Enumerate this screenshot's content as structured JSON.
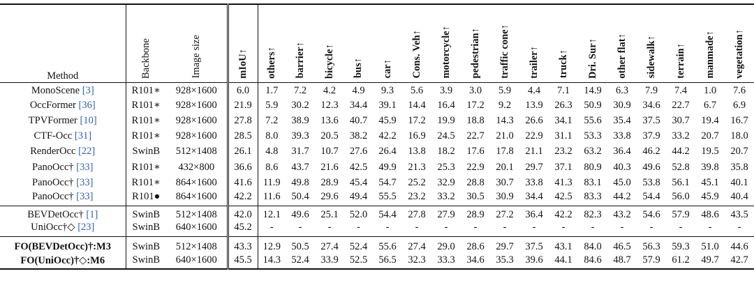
{
  "headers": {
    "method": "Method",
    "backbone": "Backbone",
    "image_size": "Image size",
    "metrics": [
      "mIoU↑",
      "others↑",
      "barrier↑",
      "bicycle↑",
      "bus↑",
      "car↑",
      "Cons. Veh↑",
      "motorcycle↑",
      "pedestrian↑",
      "traffic cone↑",
      "trailer↑",
      "truck↑",
      "Dri. Sur↑",
      "other flat↑",
      "sidewalk↑",
      "terrain↑",
      "manmade↑",
      "vegetation↑"
    ]
  },
  "groups": [
    {
      "rows": [
        {
          "name": "MonoScene",
          "cite": "[3]",
          "backbone": "R101∗",
          "size": "928×1600",
          "values": [
            "6.0",
            "1.7",
            "7.2",
            "4.2",
            "4.9",
            "9.3",
            "5.6",
            "3.9",
            "3.0",
            "5.9",
            "4.4",
            "7.1",
            "14.9",
            "6.3",
            "7.9",
            "7.4",
            "1.0",
            "7.6"
          ]
        },
        {
          "name": "OccFormer",
          "cite": "[36]",
          "backbone": "R101∗",
          "size": "928×1600",
          "values": [
            "21.9",
            "5.9",
            "30.2",
            "12.3",
            "34.4",
            "39.1",
            "14.4",
            "16.4",
            "17.2",
            "9.2",
            "13.9",
            "26.3",
            "50.9",
            "30.9",
            "34.6",
            "22.7",
            "6.7",
            "6.9"
          ]
        },
        {
          "name": "TPVFormer",
          "cite": "[10]",
          "backbone": "R101∗",
          "size": "928×1600",
          "values": [
            "27.8",
            "7.2",
            "38.9",
            "13.6",
            "40.7",
            "45.9",
            "17.2",
            "19.9",
            "18.8",
            "14.3",
            "26.6",
            "34.1",
            "55.6",
            "35.4",
            "37.5",
            "30.7",
            "19.4",
            "16.7"
          ]
        },
        {
          "name": "CTF-Occ",
          "cite": "[31]",
          "backbone": "R101∗",
          "size": "928×1600",
          "values": [
            "28.5",
            "8.0",
            "39.3",
            "20.5",
            "38.2",
            "42.2",
            "16.9",
            "24.5",
            "22.7",
            "21.0",
            "22.9",
            "31.1",
            "53.3",
            "33.8",
            "37.9",
            "33.2",
            "20.7",
            "18.0"
          ]
        },
        {
          "name": "RenderOcc",
          "cite": "[22]",
          "backbone": "SwinB",
          "size": "512×1408",
          "values": [
            "26.1",
            "4.8",
            "31.7",
            "10.7",
            "27.6",
            "26.4",
            "13.8",
            "18.2",
            "17.6",
            "17.8",
            "21.1",
            "23.2",
            "63.2",
            "36.4",
            "46.2",
            "44.2",
            "19.5",
            "20.7"
          ]
        },
        {
          "name": "PanoOcc†",
          "cite": "[33]",
          "backbone": "R101∗",
          "size": "432×800",
          "values": [
            "36.6",
            "8.6",
            "43.7",
            "21.6",
            "42.5",
            "49.9",
            "21.3",
            "25.3",
            "22.9",
            "20.1",
            "29.7",
            "37.1",
            "80.9",
            "40.3",
            "49.6",
            "52.8",
            "39.8",
            "35.8"
          ]
        },
        {
          "name": "PanoOcc†",
          "cite": "[33]",
          "backbone": "R101∗",
          "size": "864×1600",
          "values": [
            "41.6",
            "11.9",
            "49.8",
            "28.9",
            "45.4",
            "54.7",
            "25.2",
            "32.9",
            "28.8",
            "30.7",
            "33.8",
            "41.3",
            "83.1",
            "45.0",
            "53.8",
            "56.1",
            "45.1",
            "40.1"
          ]
        },
        {
          "name": "PanoOcc†",
          "cite": "[33]",
          "backbone": "R101●",
          "size": "864×1600",
          "values": [
            "42.2",
            "11.6",
            "50.4",
            "29.6",
            "49.4",
            "55.5",
            "23.2",
            "33.2",
            "30.5",
            "30.9",
            "34.4",
            "42.5",
            "83.3",
            "44.2",
            "54.4",
            "56.0",
            "45.9",
            "40.4"
          ]
        }
      ]
    },
    {
      "rows": [
        {
          "name": "BEVDetOcc†",
          "cite": "[1]",
          "backbone": "SwinB",
          "size": "512×1408",
          "values": [
            "42.0",
            "12.1",
            "49.6",
            "25.1",
            "52.0",
            "54.4",
            "27.8",
            "27.9",
            "28.9",
            "27.2",
            "36.4",
            "42.2",
            "82.3",
            "43.2",
            "54.6",
            "57.9",
            "48.6",
            "43.5"
          ]
        },
        {
          "name": "UniOcc†◇",
          "cite": "[23]",
          "backbone": "SwinB",
          "size": "640×1600",
          "values": [
            "45.2",
            "-",
            "-",
            "-",
            "-",
            "-",
            "-",
            "-",
            "-",
            "-",
            "-",
            "-",
            "-",
            "-",
            "-",
            "-",
            "-",
            "-"
          ]
        }
      ]
    },
    {
      "rows": [
        {
          "name": "FO(BEVDetOcc)†:M3",
          "cite": "",
          "backbone": "SwinB",
          "size": "512×1408",
          "bold": true,
          "values": [
            "43.3",
            "12.9",
            "50.5",
            "27.4",
            "52.4",
            "55.6",
            "27.4",
            "29.0",
            "28.6",
            "29.7",
            "37.5",
            "43.1",
            "84.0",
            "46.5",
            "56.3",
            "59.3",
            "51.0",
            "44.6"
          ]
        },
        {
          "name": "FO(UniOcc)†◇:M6",
          "cite": "",
          "backbone": "SwinB",
          "size": "640×1600",
          "bold": true,
          "values": [
            "45.5",
            "14.3",
            "52.4",
            "33.9",
            "52.5",
            "56.5",
            "32.3",
            "33.3",
            "34.6",
            "35.3",
            "39.6",
            "44.1",
            "84.6",
            "48.7",
            "57.9",
            "61.2",
            "49.7",
            "42.7"
          ]
        }
      ]
    }
  ]
}
